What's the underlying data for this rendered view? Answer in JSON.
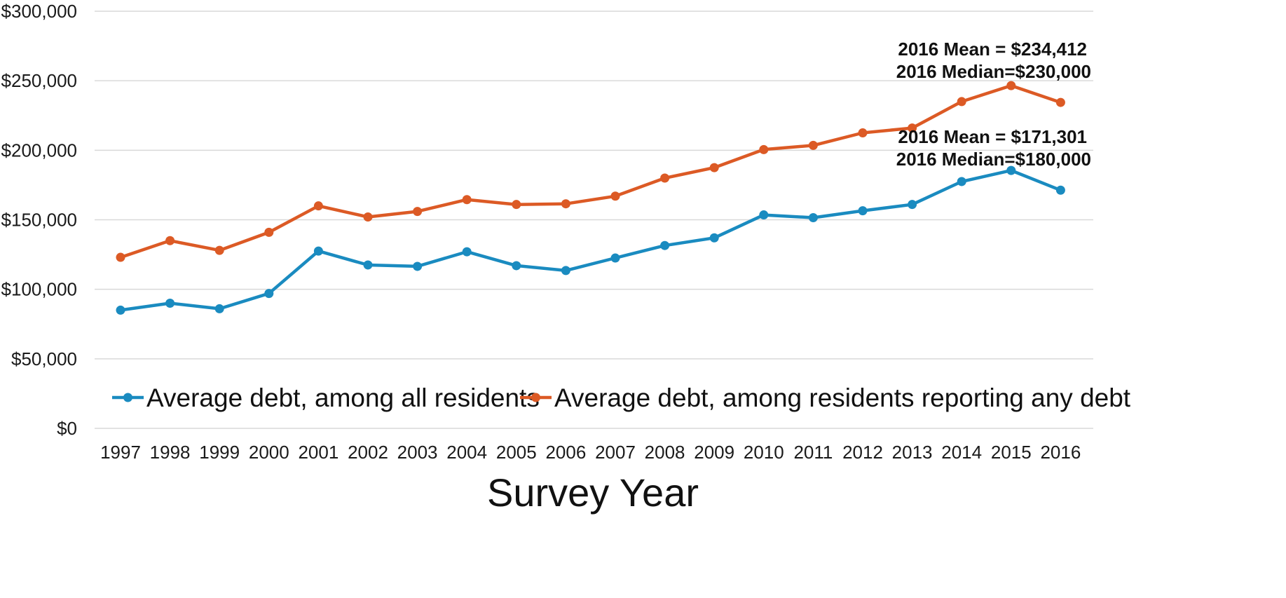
{
  "chart_data": {
    "type": "line",
    "title": "",
    "xlabel": "Survey Year",
    "ylabel": "",
    "x": [
      "1997",
      "1998",
      "1999",
      "2000",
      "2001",
      "2002",
      "2003",
      "2004",
      "2005",
      "2006",
      "2007",
      "2008",
      "2009",
      "2010",
      "2011",
      "2012",
      "2013",
      "2014",
      "2015",
      "2016"
    ],
    "ylim": [
      0,
      300000
    ],
    "yticks": [
      {
        "value": 0,
        "label": "$0"
      },
      {
        "value": 50000,
        "label": "$50,000"
      },
      {
        "value": 100000,
        "label": "$100,000"
      },
      {
        "value": 150000,
        "label": "$150,000"
      },
      {
        "value": 200000,
        "label": "$200,000"
      },
      {
        "value": 250000,
        "label": "$250,000"
      },
      {
        "value": 300000,
        "label": "$300,000"
      }
    ],
    "grid": true,
    "legend_position": "bottom",
    "series": [
      {
        "name": "Average debt, among all residents",
        "color": "#1a8bc0",
        "values": [
          85000,
          90000,
          86000,
          97000,
          127500,
          117500,
          116500,
          127000,
          117000,
          113500,
          122500,
          131500,
          137000,
          153500,
          151500,
          156500,
          161000,
          177500,
          185500,
          171301
        ]
      },
      {
        "name": "Average debt, among residents reporting any debt",
        "color": "#dc5a25",
        "values": [
          123000,
          135000,
          128000,
          141000,
          160000,
          152000,
          156000,
          164500,
          161000,
          161500,
          167000,
          180000,
          187500,
          200500,
          203500,
          212500,
          216000,
          235000,
          246500,
          234412
        ]
      }
    ],
    "annotations": [
      {
        "series": 1,
        "lines": [
          "2016 Mean = $234,412",
          "2016 Median=$230,000"
        ]
      },
      {
        "series": 0,
        "lines": [
          "2016 Mean = $171,301",
          "2016 Median=$180,000"
        ]
      }
    ]
  }
}
